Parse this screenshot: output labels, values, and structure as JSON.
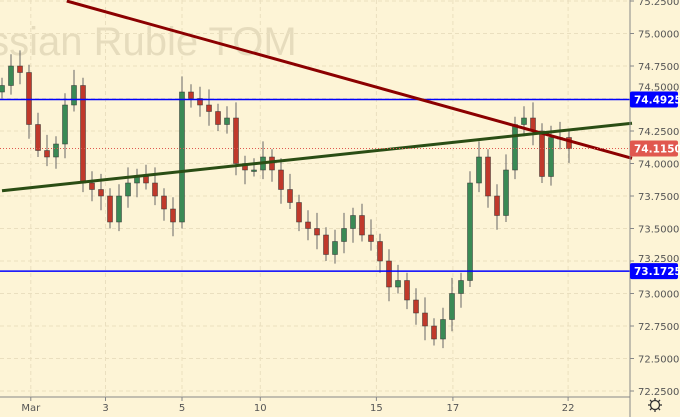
{
  "chart_data": {
    "type": "candlestick",
    "watermark": "Russian Ruble TOM",
    "ylim": [
      72.25,
      75.25
    ],
    "y_ticks": [
      "72.2500",
      "72.5000",
      "72.7500",
      "73.0000",
      "73.2500",
      "73.5000",
      "73.7500",
      "74.0000",
      "74.2500",
      "74.5000",
      "74.7500",
      "75.0000",
      "75.2500"
    ],
    "x_ticks": [
      {
        "label": "Mar",
        "candle": 3.2
      },
      {
        "label": "3",
        "candle": 11.5
      },
      {
        "label": "5",
        "candle": 20
      },
      {
        "label": "10",
        "candle": 28.7
      },
      {
        "label": "15",
        "candle": 41.6
      },
      {
        "label": "17",
        "candle": 50.1
      },
      {
        "label": "22",
        "candle": 62.9
      }
    ],
    "closes": [
      74.6,
      74.75,
      74.7,
      74.3,
      74.1,
      74.05,
      74.15,
      74.45,
      74.6,
      73.85,
      73.8,
      73.75,
      73.55,
      73.75,
      73.85,
      73.9,
      73.85,
      73.75,
      73.65,
      73.55,
      74.55,
      74.5,
      74.45,
      74.4,
      74.3,
      74.35,
      74.0,
      73.95,
      73.95,
      74.05,
      73.95,
      73.8,
      73.7,
      73.55,
      73.5,
      73.45,
      73.3,
      73.4,
      73.5,
      73.6,
      73.45,
      73.4,
      73.25,
      73.05,
      73.1,
      72.95,
      72.85,
      72.75,
      72.65,
      72.8,
      73.0,
      73.1,
      73.85,
      74.05,
      73.75,
      73.6,
      73.95,
      74.3,
      74.35,
      74.25,
      73.9,
      74.2,
      74.2,
      74.115
    ],
    "horizontal_levels": [
      {
        "price": 74.4925,
        "label": "74.4925",
        "color": "#0000ff"
      },
      {
        "price": 73.1725,
        "label": "73.1725",
        "color": "#0000ff"
      }
    ],
    "current_price": {
      "price": 74.115,
      "label": "74.1150",
      "color": "#e0584f"
    },
    "trendlines": [
      {
        "color": "#8b0000",
        "from": [
          7.2,
          75.25
        ],
        "to": [
          70,
          74.04
        ]
      },
      {
        "color": "#2a4d14",
        "from": [
          0,
          73.79
        ],
        "to": [
          70,
          74.31
        ]
      }
    ],
    "colors": {
      "up": "#3a8a55",
      "down": "#c0392b",
      "wick": "#666666"
    }
  },
  "settings_icon": "gear-icon"
}
